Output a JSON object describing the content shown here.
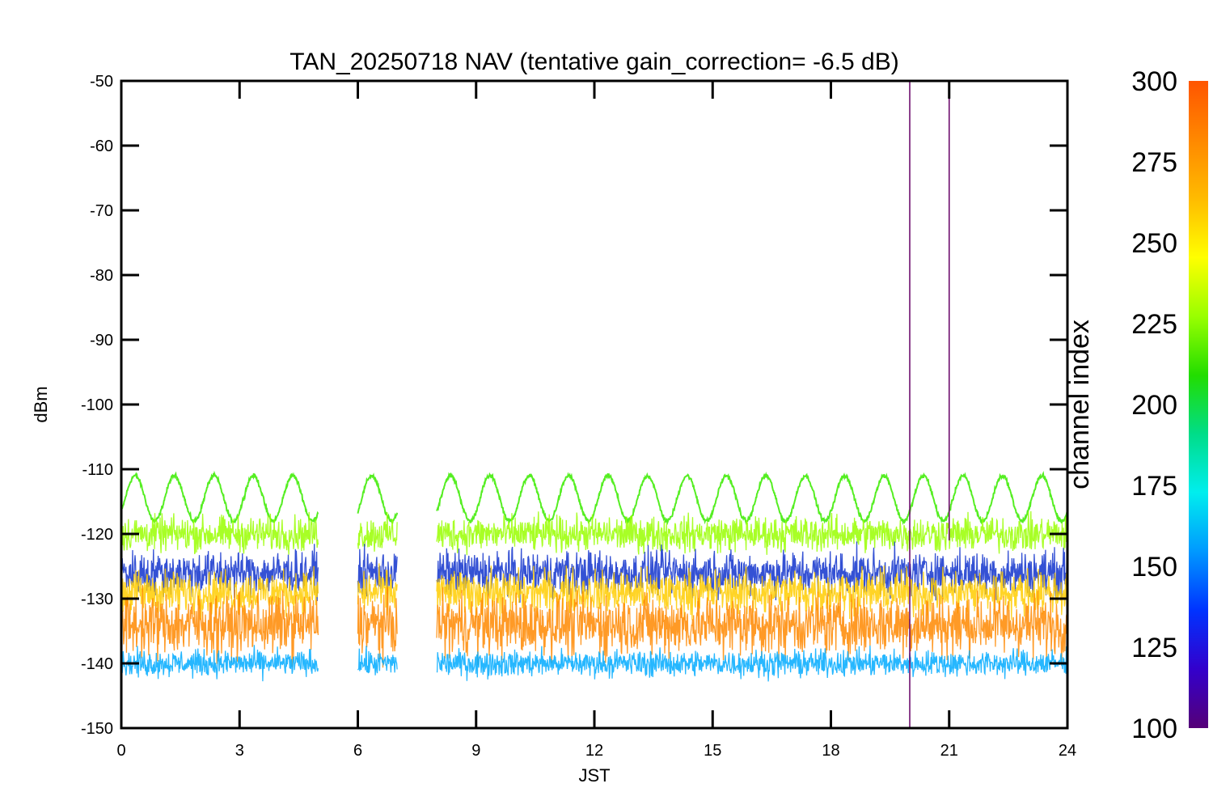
{
  "chart_data": {
    "type": "line",
    "title": "TAN_20250718 NAV (tentative gain_correction= -6.5 dB)",
    "xlabel": "JST",
    "ylabel": "dBm",
    "xlim": [
      0,
      24
    ],
    "ylim": [
      -150,
      -50
    ],
    "x_ticks": [
      "0",
      "3",
      "6",
      "9",
      "12",
      "15",
      "18",
      "21",
      "24"
    ],
    "y_ticks": [
      "-50",
      "-60",
      "-70",
      "-80",
      "-90",
      "-100",
      "-110",
      "-120",
      "-130",
      "-140",
      "-150"
    ],
    "grid": false,
    "data_segments": [
      {
        "start": 0,
        "end": 5
      },
      {
        "start": 6,
        "end": 7
      },
      {
        "start": 8,
        "end": 24
      }
    ],
    "series": [
      {
        "channel": 245,
        "color": "#55ee22",
        "upper_peak": -111,
        "upper_trough": -118,
        "period_hours": 1.0
      },
      {
        "channel": 260,
        "color": "#99ff00",
        "center": -120,
        "spread": 4
      },
      {
        "channel": 150,
        "color": "#1133cc",
        "center": -126,
        "spread": 5
      },
      {
        "channel": 280,
        "color": "#ffcc00",
        "center": -129,
        "spread": 5
      },
      {
        "channel": 295,
        "color": "#ff8800",
        "center": -134,
        "spread": 7
      },
      {
        "channel": 170,
        "color": "#00aaff",
        "center": -140,
        "spread": 3
      }
    ],
    "spikes": [
      {
        "x": 20.0,
        "y_top": -50,
        "y_bottom": -150,
        "color": "#660066"
      },
      {
        "x": 21.0,
        "y_top": -50,
        "y_bottom": -121,
        "color": "#660066"
      }
    ],
    "colorbar": {
      "label": "channel index",
      "range": [
        100,
        300
      ],
      "ticks": [
        "300",
        "275",
        "250",
        "225",
        "200",
        "175",
        "150",
        "125",
        "100"
      ],
      "colormap": [
        "#550077",
        "#3300cc",
        "#0033ff",
        "#0099ff",
        "#00eeee",
        "#00dd88",
        "#22dd00",
        "#99ff00",
        "#ffff00",
        "#ffbb00",
        "#ff8800",
        "#ff5500"
      ]
    }
  }
}
